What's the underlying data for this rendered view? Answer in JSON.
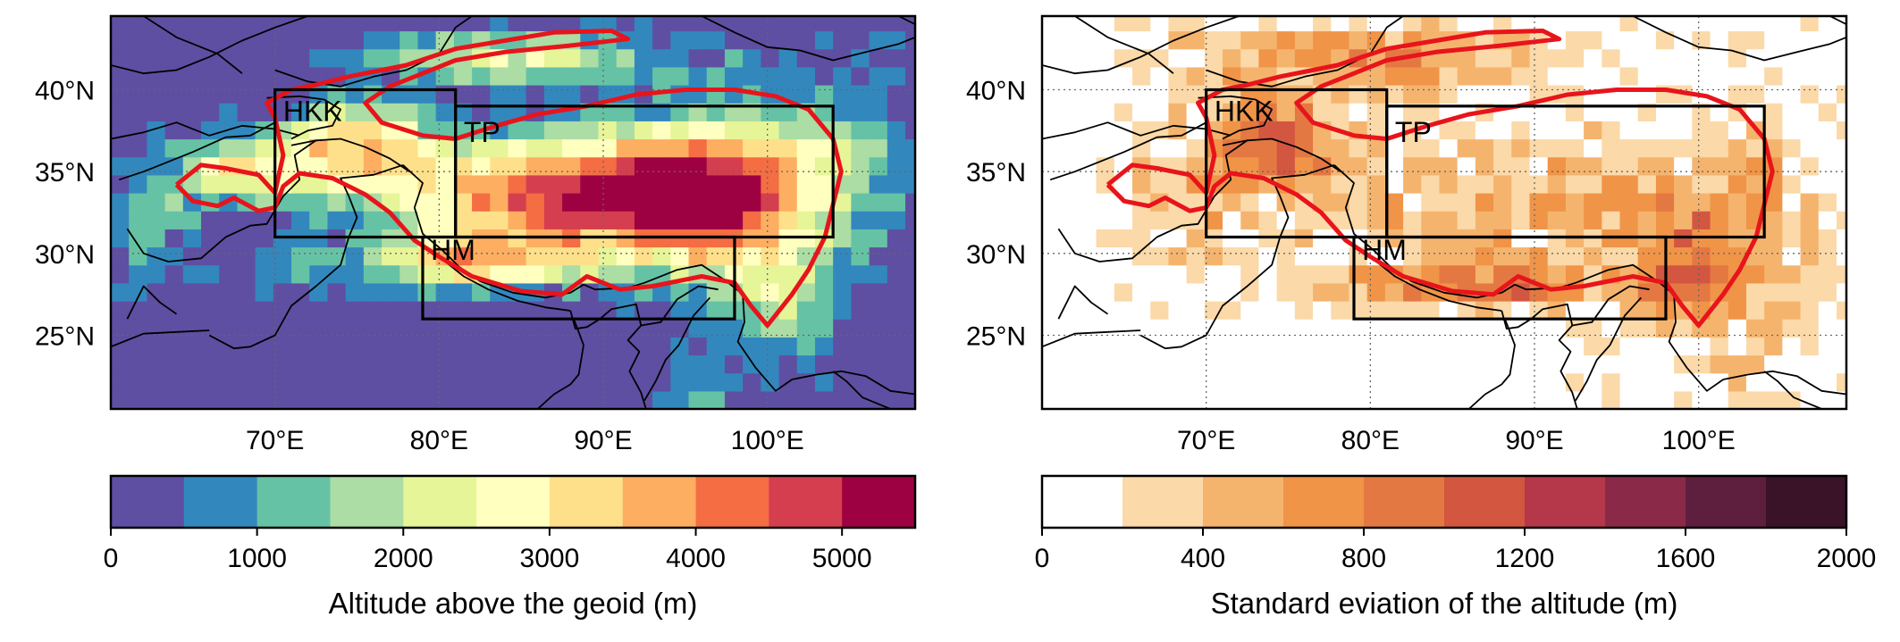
{
  "chart_data": [
    {
      "type": "heatmap",
      "panel": "left",
      "title": "",
      "xlabel": "",
      "ylabel": "",
      "xlim": [
        60,
        109
      ],
      "ylim": [
        20.5,
        44.5
      ],
      "x_ticks": [
        70,
        80,
        90,
        100
      ],
      "x_tick_labels": [
        "70°E",
        "80°E",
        "90°E",
        "100°E"
      ],
      "y_ticks": [
        25,
        30,
        35,
        40
      ],
      "y_tick_labels": [
        "25°N",
        "30°N",
        "35°N",
        "40°N"
      ],
      "grid": "dotted",
      "regions": [
        {
          "name": "HKK",
          "lon": [
            70,
            81
          ],
          "lat": [
            31,
            40
          ]
        },
        {
          "name": "TP",
          "lon": [
            81,
            104
          ],
          "lat": [
            31,
            39
          ]
        },
        {
          "name": "HM",
          "lon": [
            79,
            98
          ],
          "lat": [
            26,
            31
          ]
        }
      ],
      "colorbar": {
        "label": "Altitude above the geoid (m)",
        "ticks": [
          0,
          1000,
          2000,
          3000,
          4000,
          5000
        ],
        "tick_labels": [
          "0",
          "1000",
          "2000",
          "3000",
          "4000",
          "5000"
        ],
        "range": [
          0,
          5500
        ],
        "bins": [
          0,
          500,
          1000,
          1500,
          2000,
          2500,
          3000,
          3500,
          4000,
          4500,
          5000,
          5500
        ],
        "colors": [
          "#5e4fa2",
          "#3288bd",
          "#66c2a5",
          "#abdda4",
          "#e6f598",
          "#ffffbf",
          "#fee08b",
          "#fdae61",
          "#f46d43",
          "#d53e4f",
          "#9e0142"
        ]
      },
      "contour_color": "#e8141b"
    },
    {
      "type": "heatmap",
      "panel": "right",
      "title": "",
      "xlabel": "",
      "ylabel": "",
      "xlim": [
        60,
        109
      ],
      "ylim": [
        20.5,
        44.5
      ],
      "x_ticks": [
        70,
        80,
        90,
        100
      ],
      "x_tick_labels": [
        "70°E",
        "80°E",
        "90°E",
        "100°E"
      ],
      "y_ticks": [
        25,
        30,
        35,
        40
      ],
      "y_tick_labels": [
        "25°N",
        "30°N",
        "35°N",
        "40°N"
      ],
      "grid": "dotted",
      "regions": [
        {
          "name": "HKK",
          "lon": [
            70,
            81
          ],
          "lat": [
            31,
            40
          ]
        },
        {
          "name": "TP",
          "lon": [
            81,
            104
          ],
          "lat": [
            31,
            39
          ]
        },
        {
          "name": "HM",
          "lon": [
            79,
            98
          ],
          "lat": [
            26,
            31
          ]
        }
      ],
      "colorbar": {
        "label": "Standard eviation of the altitude (m)",
        "ticks": [
          0,
          400,
          800,
          1200,
          1600,
          2000
        ],
        "tick_labels": [
          "0",
          "400",
          "800",
          "1200",
          "1600",
          "2000"
        ],
        "range": [
          0,
          2000
        ],
        "bins": [
          0,
          200,
          400,
          600,
          800,
          1000,
          1200,
          1400,
          1600,
          1800,
          2000
        ],
        "colors": [
          "#ffffff",
          "#fbd9a8",
          "#f5b46e",
          "#f09447",
          "#e47842",
          "#d25640",
          "#b5374a",
          "#8a2a48",
          "#5e1f3e",
          "#3a1329"
        ]
      },
      "contour_color": "#e8141b"
    }
  ]
}
